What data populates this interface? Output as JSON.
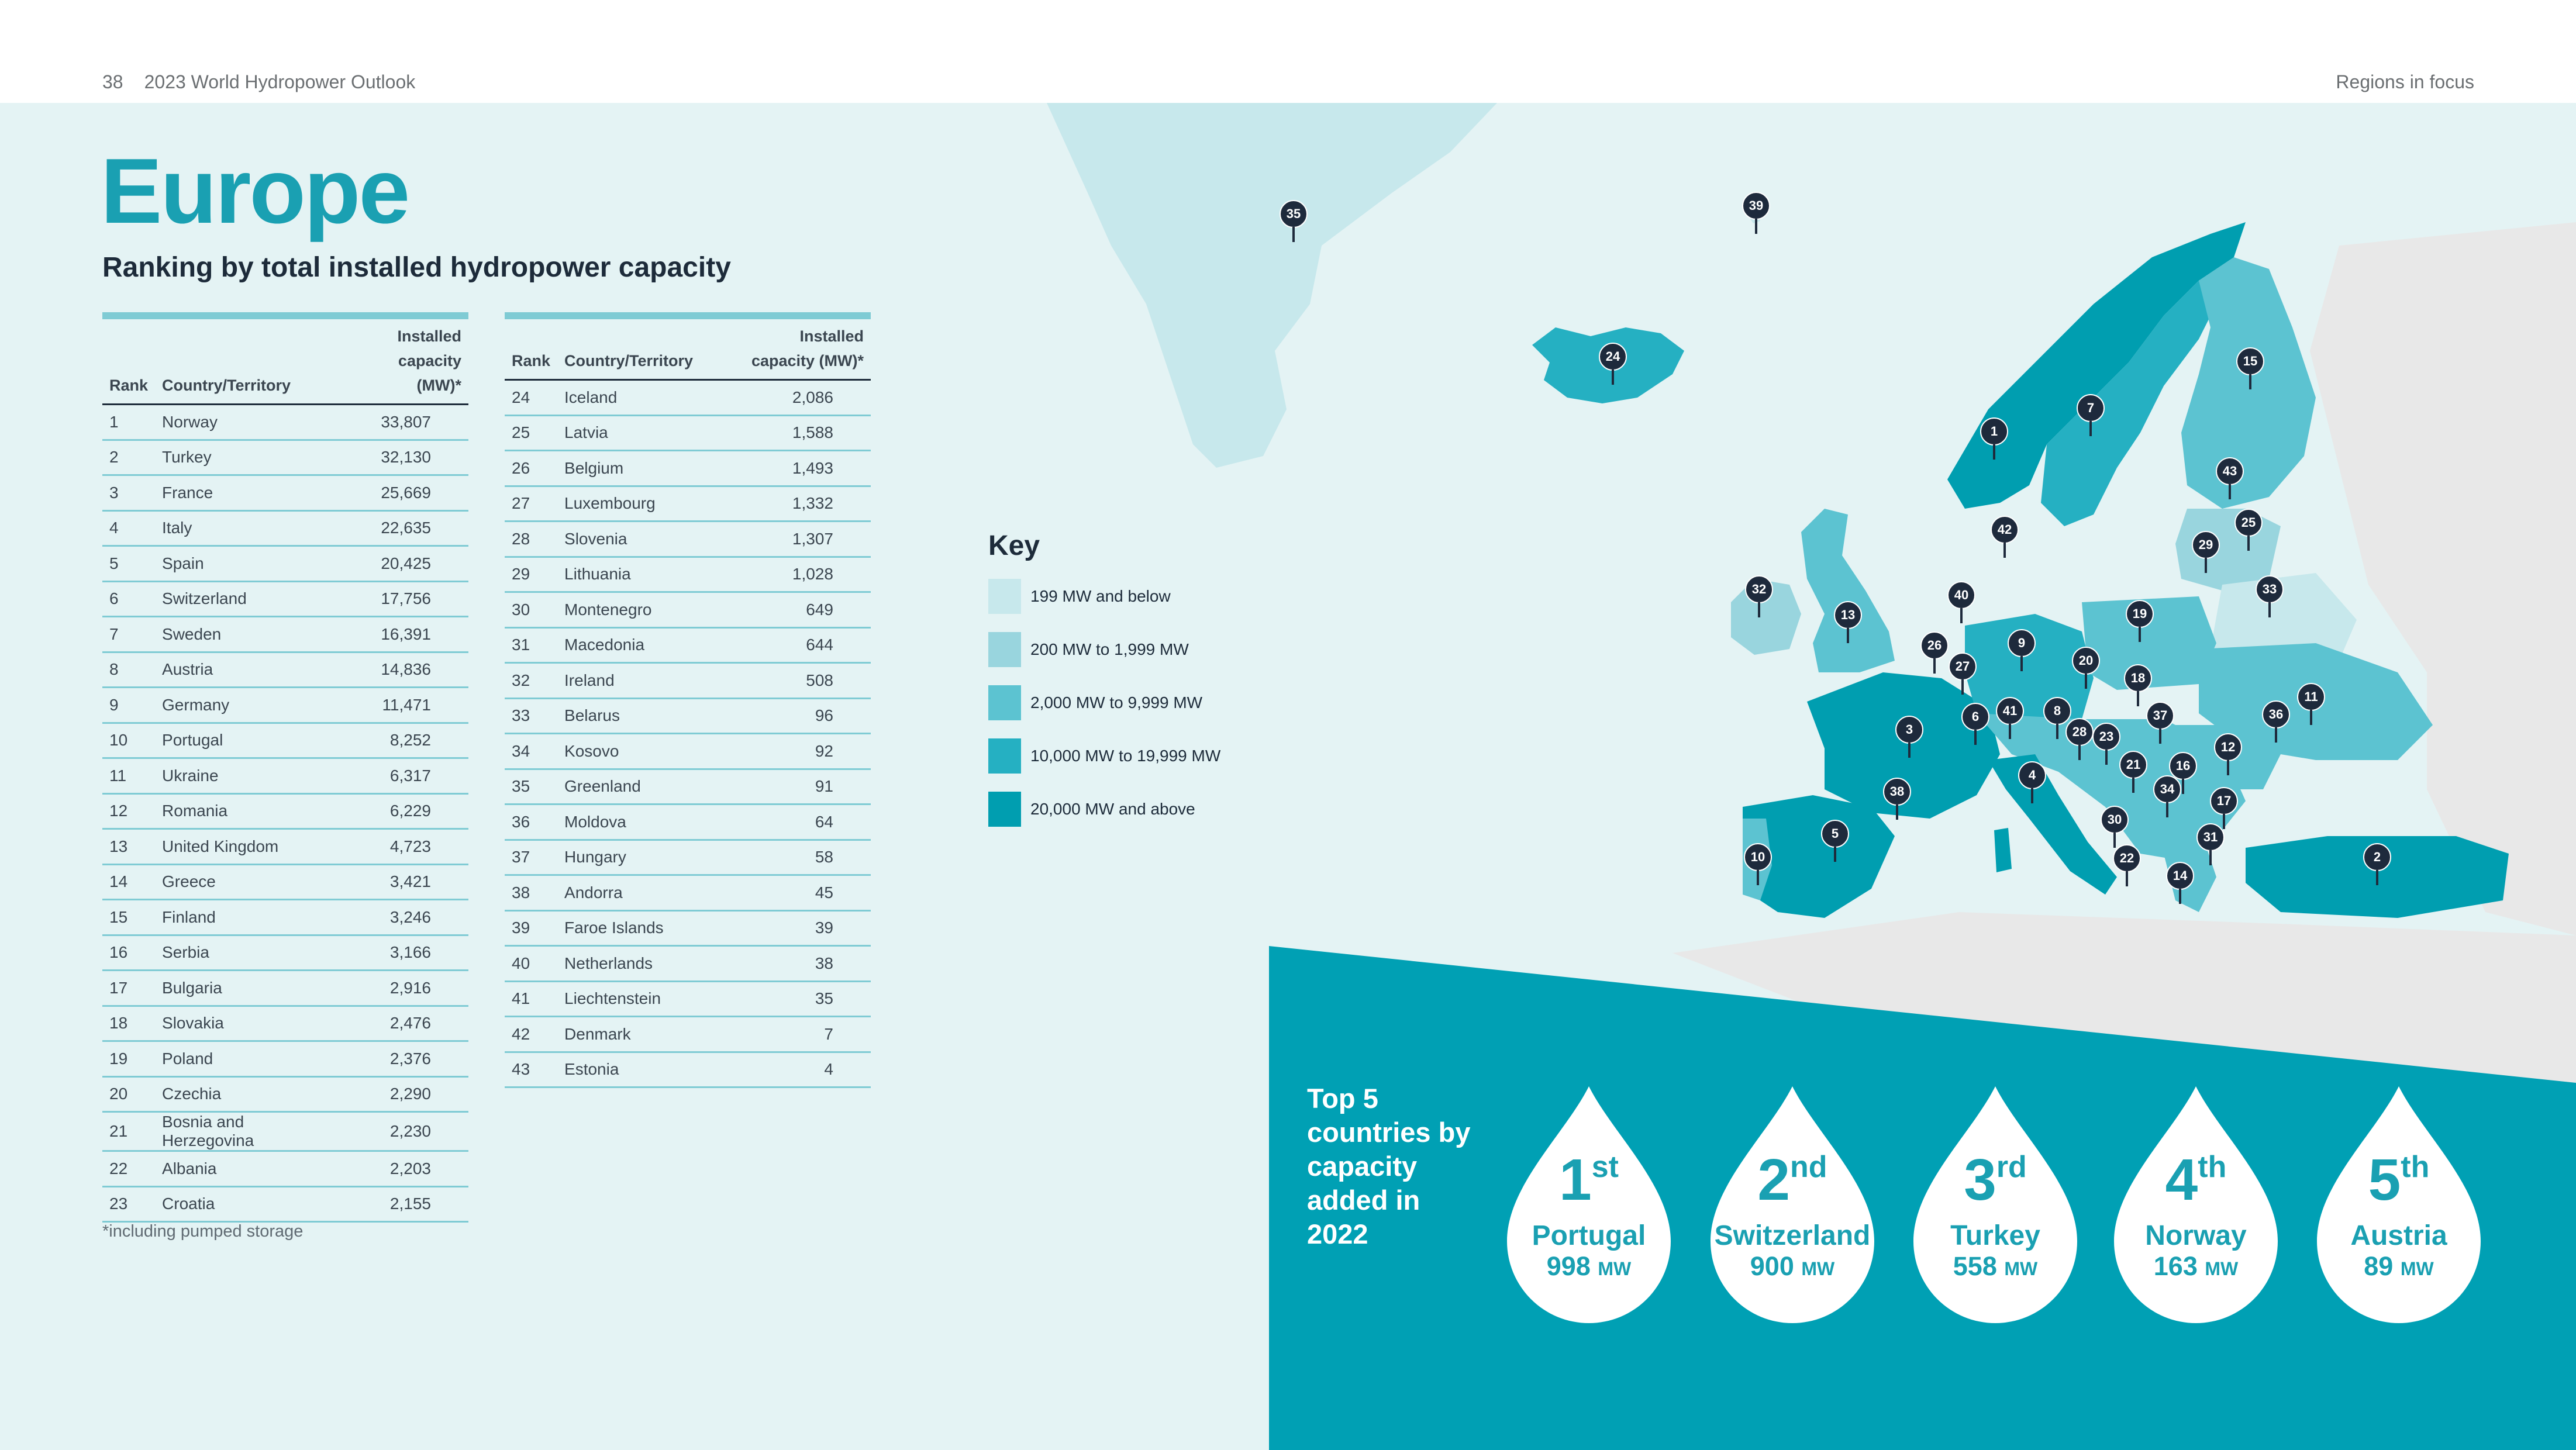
{
  "header": {
    "page_number": "38",
    "publication": "2023 World Hydropower Outlook",
    "section": "Regions in focus"
  },
  "title": "Europe",
  "subtitle": "Ranking by total installed hydropower capacity",
  "table_headers": {
    "rank": "Rank",
    "country": "Country/Territory",
    "capacity_line1": "Installed",
    "capacity_line2": "capacity (MW)*"
  },
  "rankings": [
    {
      "rank": "1",
      "country": "Norway",
      "capacity": "33,807"
    },
    {
      "rank": "2",
      "country": "Turkey",
      "capacity": "32,130"
    },
    {
      "rank": "3",
      "country": "France",
      "capacity": "25,669"
    },
    {
      "rank": "4",
      "country": "Italy",
      "capacity": "22,635"
    },
    {
      "rank": "5",
      "country": "Spain",
      "capacity": "20,425"
    },
    {
      "rank": "6",
      "country": "Switzerland",
      "capacity": "17,756"
    },
    {
      "rank": "7",
      "country": "Sweden",
      "capacity": "16,391"
    },
    {
      "rank": "8",
      "country": "Austria",
      "capacity": "14,836"
    },
    {
      "rank": "9",
      "country": "Germany",
      "capacity": "11,471"
    },
    {
      "rank": "10",
      "country": "Portugal",
      "capacity": "8,252"
    },
    {
      "rank": "11",
      "country": "Ukraine",
      "capacity": "6,317"
    },
    {
      "rank": "12",
      "country": "Romania",
      "capacity": "6,229"
    },
    {
      "rank": "13",
      "country": "United Kingdom",
      "capacity": "4,723"
    },
    {
      "rank": "14",
      "country": "Greece",
      "capacity": "3,421"
    },
    {
      "rank": "15",
      "country": "Finland",
      "capacity": "3,246"
    },
    {
      "rank": "16",
      "country": "Serbia",
      "capacity": "3,166"
    },
    {
      "rank": "17",
      "country": "Bulgaria",
      "capacity": "2,916"
    },
    {
      "rank": "18",
      "country": "Slovakia",
      "capacity": "2,476"
    },
    {
      "rank": "19",
      "country": "Poland",
      "capacity": "2,376"
    },
    {
      "rank": "20",
      "country": "Czechia",
      "capacity": "2,290"
    },
    {
      "rank": "21",
      "country": "Bosnia and Herzegovina",
      "capacity": "2,230"
    },
    {
      "rank": "22",
      "country": "Albania",
      "capacity": "2,203"
    },
    {
      "rank": "23",
      "country": "Croatia",
      "capacity": "2,155"
    },
    {
      "rank": "24",
      "country": "Iceland",
      "capacity": "2,086"
    },
    {
      "rank": "25",
      "country": "Latvia",
      "capacity": "1,588"
    },
    {
      "rank": "26",
      "country": "Belgium",
      "capacity": "1,493"
    },
    {
      "rank": "27",
      "country": "Luxembourg",
      "capacity": "1,332"
    },
    {
      "rank": "28",
      "country": "Slovenia",
      "capacity": "1,307"
    },
    {
      "rank": "29",
      "country": "Lithuania",
      "capacity": "1,028"
    },
    {
      "rank": "30",
      "country": "Montenegro",
      "capacity": "649"
    },
    {
      "rank": "31",
      "country": "Macedonia",
      "capacity": "644"
    },
    {
      "rank": "32",
      "country": "Ireland",
      "capacity": "508"
    },
    {
      "rank": "33",
      "country": "Belarus",
      "capacity": "96"
    },
    {
      "rank": "34",
      "country": "Kosovo",
      "capacity": "92"
    },
    {
      "rank": "35",
      "country": "Greenland",
      "capacity": "91"
    },
    {
      "rank": "36",
      "country": "Moldova",
      "capacity": "64"
    },
    {
      "rank": "37",
      "country": "Hungary",
      "capacity": "58"
    },
    {
      "rank": "38",
      "country": "Andorra",
      "capacity": "45"
    },
    {
      "rank": "39",
      "country": "Faroe Islands",
      "capacity": "39"
    },
    {
      "rank": "40",
      "country": "Netherlands",
      "capacity": "38"
    },
    {
      "rank": "41",
      "country": "Liechtenstein",
      "capacity": "35"
    },
    {
      "rank": "42",
      "country": "Denmark",
      "capacity": "7"
    },
    {
      "rank": "43",
      "country": "Estonia",
      "capacity": "4"
    }
  ],
  "footnote": "*including pumped storage",
  "key": {
    "title": "Key",
    "items": [
      {
        "label": "199 MW and below",
        "color": "#c7e8ec"
      },
      {
        "label": "200 MW to 1,999 MW",
        "color": "#99d5de"
      },
      {
        "label": "2,000 MW to 9,999 MW",
        "color": "#5cc3d1"
      },
      {
        "label": "10,000 MW to 19,999 MW",
        "color": "#25b0c2"
      },
      {
        "label": "20,000 MW and above",
        "color": "#009eb0"
      }
    ]
  },
  "map_markers": [
    "1",
    "2",
    "3",
    "4",
    "5",
    "6",
    "7",
    "8",
    "9",
    "10",
    "11",
    "12",
    "13",
    "14",
    "15",
    "16",
    "17",
    "18",
    "19",
    "20",
    "21",
    "22",
    "23",
    "24",
    "25",
    "26",
    "27",
    "28",
    "29",
    "30",
    "31",
    "32",
    "33",
    "34",
    "35",
    "36",
    "37",
    "38",
    "39",
    "40",
    "41",
    "42",
    "43"
  ],
  "top5": {
    "heading": "Top 5 countries by capacity added in 2022",
    "items": [
      {
        "ordinal": "1",
        "suffix": "st",
        "country": "Portugal",
        "value": "998",
        "unit": "MW"
      },
      {
        "ordinal": "2",
        "suffix": "nd",
        "country": "Switzerland",
        "value": "900",
        "unit": "MW"
      },
      {
        "ordinal": "3",
        "suffix": "rd",
        "country": "Turkey",
        "value": "558",
        "unit": "MW"
      },
      {
        "ordinal": "4",
        "suffix": "th",
        "country": "Norway",
        "value": "163",
        "unit": "MW"
      },
      {
        "ordinal": "5",
        "suffix": "th",
        "country": "Austria",
        "value": "89",
        "unit": "MW"
      }
    ]
  },
  "colors": {
    "accent": "#1aa0b2",
    "dark": "#1d2b3a",
    "panel": "#00a0b4",
    "background": "#e4f3f4",
    "land_other": "#e8e8e8"
  }
}
